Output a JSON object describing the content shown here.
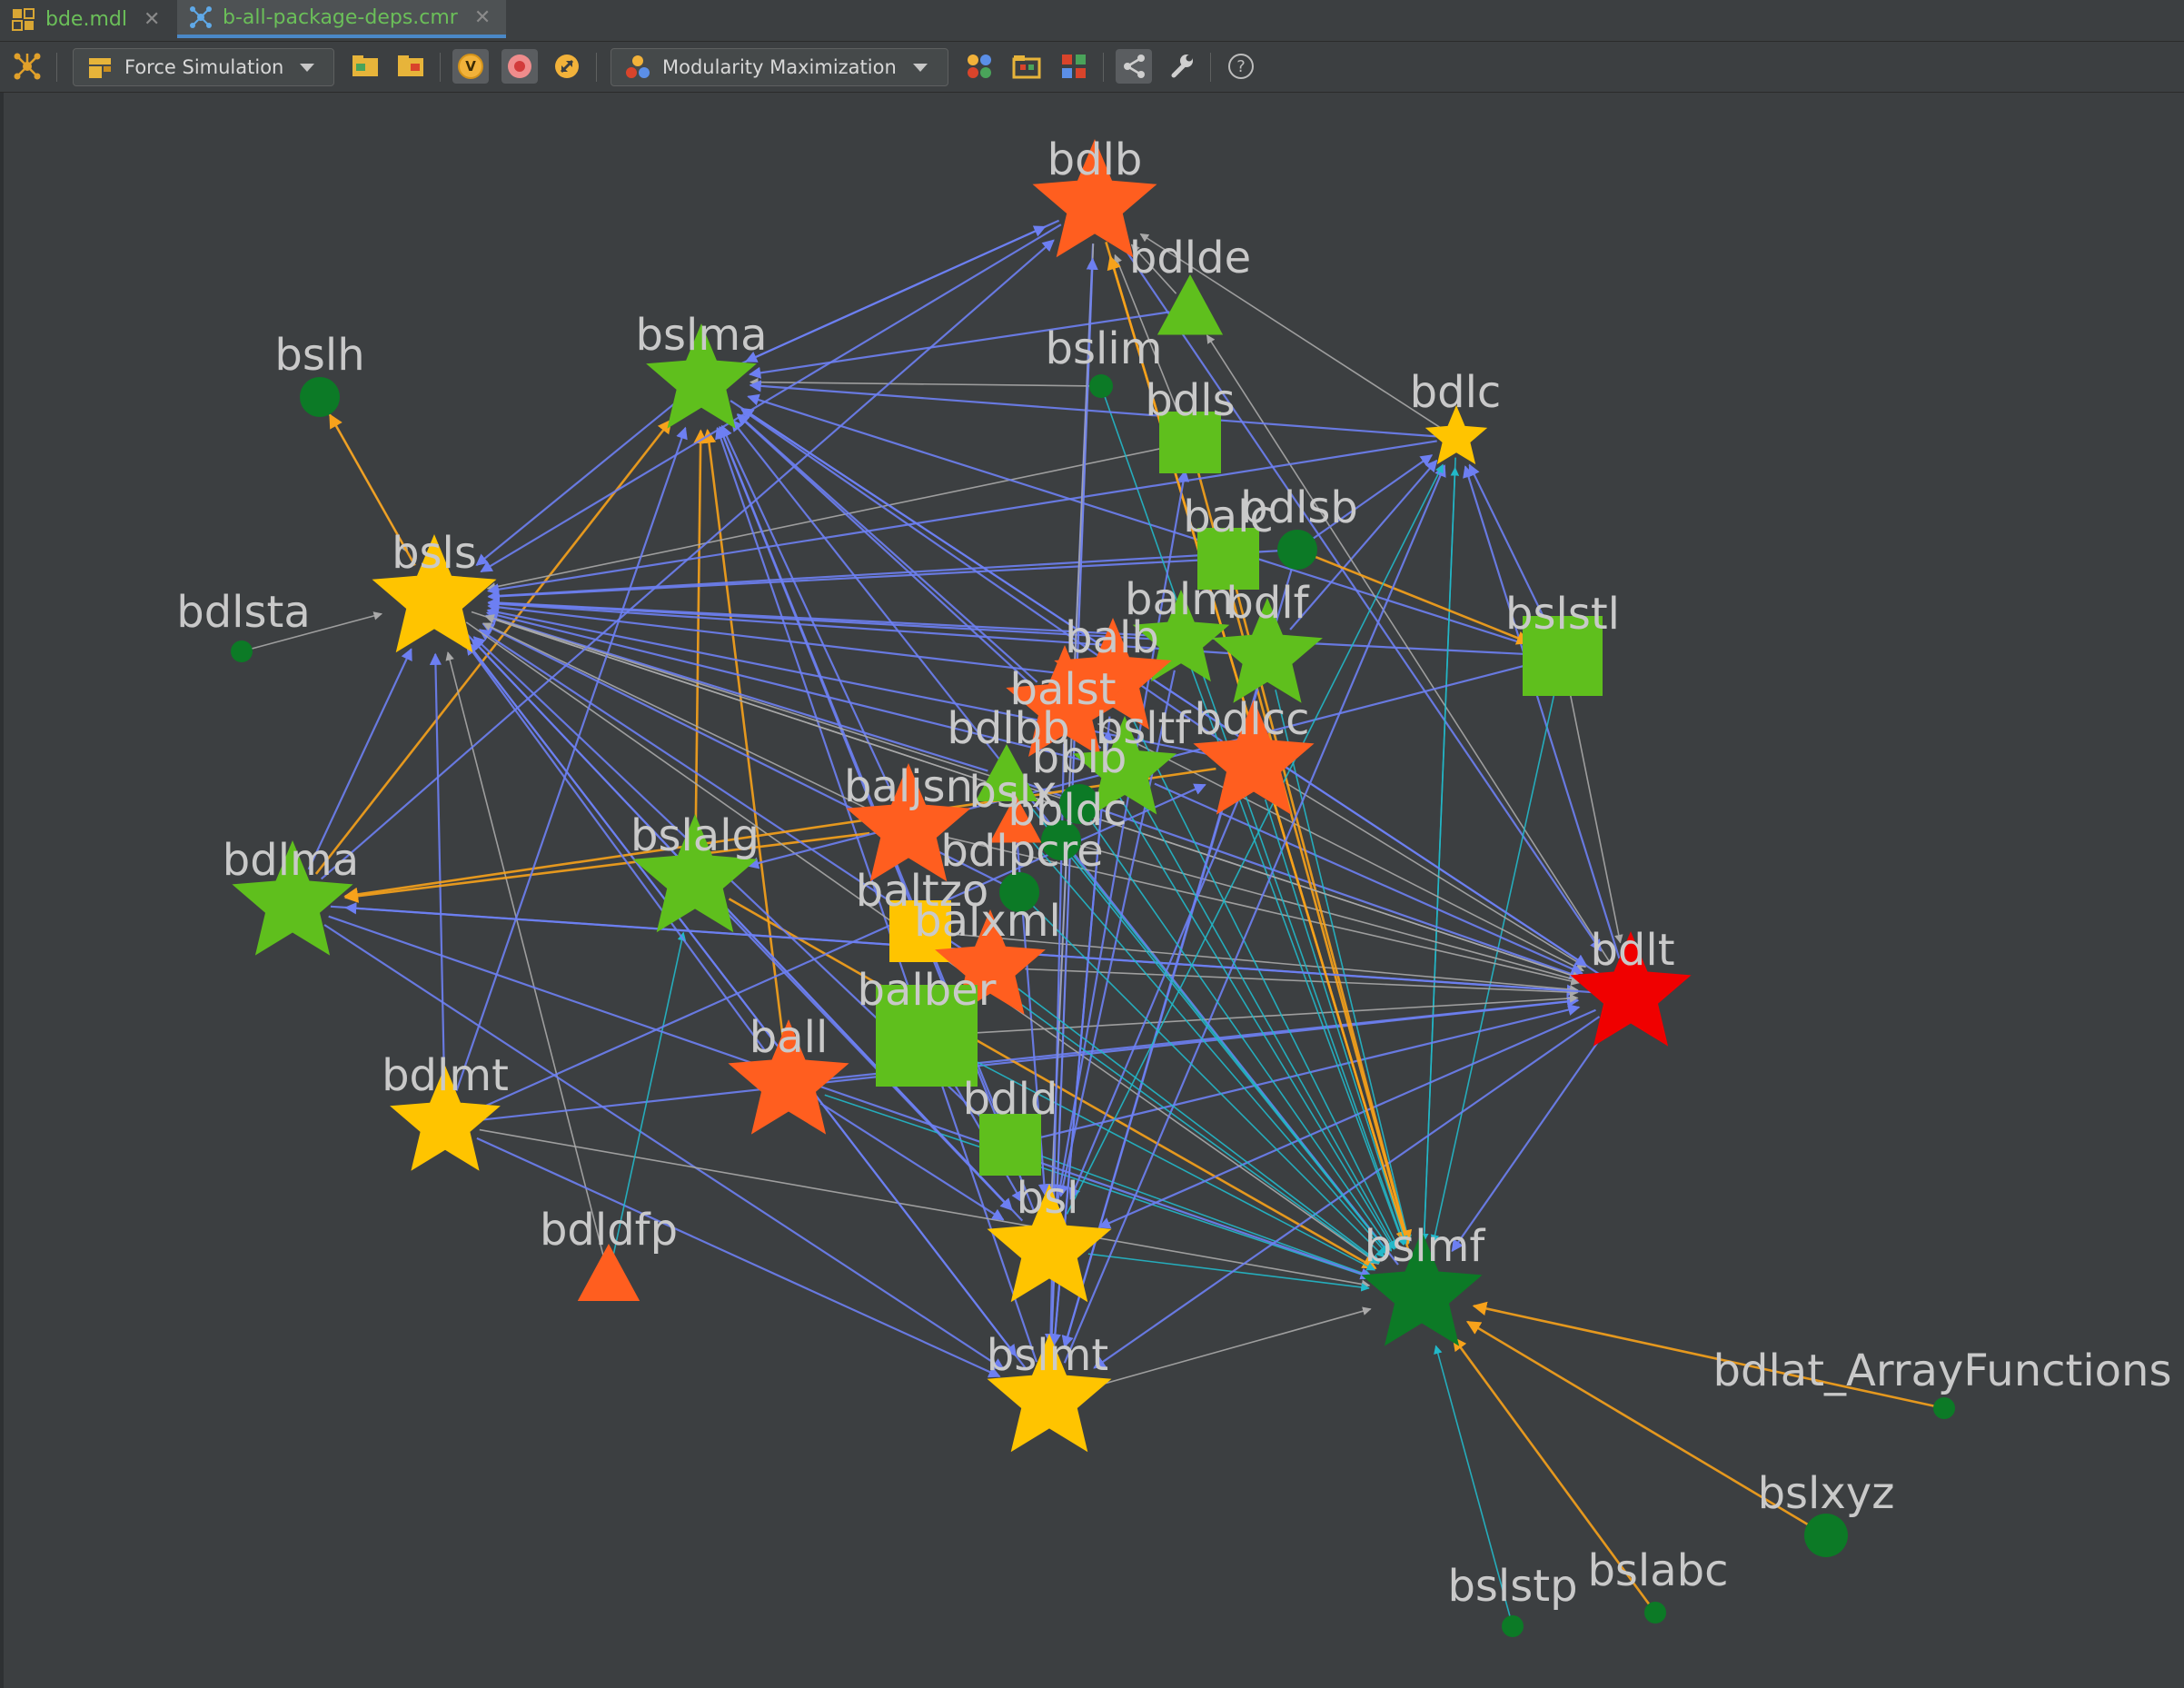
{
  "tabs": [
    {
      "label": "bde.mdl",
      "icon": "module-file-icon",
      "active": false
    },
    {
      "label": "b-all-package-deps.cmr",
      "icon": "graph-file-icon",
      "active": true
    }
  ],
  "toolbar": {
    "layout_dropdown": {
      "label": "Force Simulation",
      "icon": "layout-icon"
    },
    "clustering_dropdown": {
      "label": "Modularity Maximization",
      "icon": "clusters-icon"
    },
    "v_badge": "V",
    "help_glyph": "?"
  },
  "colors": {
    "orange": "#ff5e1f",
    "green": "#5fbf1d",
    "dark_green": "#0c7a26",
    "yellow": "#ffc400",
    "red": "#f00000",
    "edge_blue": "#6d7ff2",
    "edge_orange": "#f7a21b",
    "edge_cyan": "#22b8c9",
    "edge_gray": "#a9a9a9"
  },
  "graph": {
    "nodes": [
      {
        "id": "bdlb",
        "label": "bdlb",
        "shape": "star",
        "color": "orange"
      },
      {
        "id": "bdlde",
        "label": "bdlde",
        "shape": "triangle",
        "color": "green"
      },
      {
        "id": "bslma",
        "label": "bslma",
        "shape": "star",
        "color": "green"
      },
      {
        "id": "bslh",
        "label": "bslh",
        "shape": "circle",
        "color": "dark_green"
      },
      {
        "id": "bslim",
        "label": "bslim",
        "shape": "circle",
        "color": "dark_green"
      },
      {
        "id": "bdls",
        "label": "bdls",
        "shape": "square",
        "color": "green"
      },
      {
        "id": "bdlc",
        "label": "bdlc",
        "shape": "star",
        "color": "yellow"
      },
      {
        "id": "bsls",
        "label": "bsls",
        "shape": "star",
        "color": "yellow"
      },
      {
        "id": "bdlsta",
        "label": "bdlsta",
        "shape": "circle",
        "color": "dark_green"
      },
      {
        "id": "balc",
        "label": "balc",
        "shape": "square",
        "color": "green"
      },
      {
        "id": "bdlsb",
        "label": "bdlsb",
        "shape": "circle",
        "color": "dark_green"
      },
      {
        "id": "balm",
        "label": "balm",
        "shape": "star",
        "color": "green"
      },
      {
        "id": "bdlf",
        "label": "bdlf",
        "shape": "star",
        "color": "green"
      },
      {
        "id": "bslstl",
        "label": "bslstl",
        "shape": "square",
        "color": "green"
      },
      {
        "id": "balb",
        "label": "balb",
        "shape": "star",
        "color": "orange"
      },
      {
        "id": "balst",
        "label": "balst",
        "shape": "star",
        "color": "orange"
      },
      {
        "id": "bdlcc",
        "label": "bdlcc",
        "shape": "star",
        "color": "orange"
      },
      {
        "id": "bdlbb",
        "label": "bdlbb",
        "shape": "triangle",
        "color": "green"
      },
      {
        "id": "bsltf",
        "label": "bsltf",
        "shape": "star",
        "color": "green"
      },
      {
        "id": "bblb",
        "label": "bblb",
        "shape": "circle",
        "color": "dark_green"
      },
      {
        "id": "baljsn",
        "label": "baljsn",
        "shape": "star",
        "color": "orange"
      },
      {
        "id": "bslx",
        "label": "bslx",
        "shape": "triangle",
        "color": "orange"
      },
      {
        "id": "bbldc",
        "label": "bbldc",
        "shape": "circle",
        "color": "dark_green"
      },
      {
        "id": "bdlma",
        "label": "bdlma",
        "shape": "star",
        "color": "green"
      },
      {
        "id": "bslalg",
        "label": "bslalg",
        "shape": "star",
        "color": "green"
      },
      {
        "id": "bdlpcre",
        "label": "bdlpcre",
        "shape": "circle",
        "color": "dark_green"
      },
      {
        "id": "baltzo",
        "label": "baltzo",
        "shape": "square",
        "color": "yellow"
      },
      {
        "id": "balxml",
        "label": "balxml",
        "shape": "star",
        "color": "orange"
      },
      {
        "id": "bdlt",
        "label": "bdlt",
        "shape": "star",
        "color": "red"
      },
      {
        "id": "balber",
        "label": "balber",
        "shape": "square",
        "color": "green"
      },
      {
        "id": "ball",
        "label": "ball",
        "shape": "star",
        "color": "orange"
      },
      {
        "id": "bdlmt",
        "label": "bdlmt",
        "shape": "star",
        "color": "yellow"
      },
      {
        "id": "bdld",
        "label": "bdld",
        "shape": "square",
        "color": "green"
      },
      {
        "id": "bdldfp",
        "label": "bdldfp",
        "shape": "triangle",
        "color": "orange"
      },
      {
        "id": "bsl",
        "label": "bsl",
        "shape": "star",
        "color": "yellow"
      },
      {
        "id": "bslmf",
        "label": "bslmf",
        "shape": "star",
        "color": "dark_green"
      },
      {
        "id": "bslmt",
        "label": "bslmt",
        "shape": "star",
        "color": "yellow"
      },
      {
        "id": "bdlat_ArrayFunctions",
        "label": "bdlat_ArrayFunctions",
        "shape": "circle",
        "color": "dark_green"
      },
      {
        "id": "bslxyz",
        "label": "bslxyz",
        "shape": "circle",
        "color": "dark_green"
      },
      {
        "id": "bslstp",
        "label": "bslstp",
        "shape": "circle",
        "color": "dark_green"
      },
      {
        "id": "bslabc",
        "label": "bslabc",
        "shape": "circle",
        "color": "dark_green"
      }
    ],
    "edges": [
      [
        "bslh",
        "bsls",
        "edge_gray"
      ],
      [
        "bsls",
        "bslh",
        "edge_orange"
      ],
      [
        "bdlsta",
        "bsls",
        "edge_gray"
      ],
      [
        "bdlde",
        "bdlb",
        "edge_gray"
      ],
      [
        "bdlc",
        "bdlb",
        "edge_gray"
      ],
      [
        "bdls",
        "bdlb",
        "edge_gray"
      ],
      [
        "bslma",
        "bdlb",
        "edge_blue"
      ],
      [
        "bslma",
        "bsls",
        "edge_blue"
      ],
      [
        "bdlma",
        "bsls",
        "edge_blue"
      ],
      [
        "bdlma",
        "bslma",
        "edge_orange"
      ],
      [
        "bdlmt",
        "bsls",
        "edge_blue"
      ],
      [
        "bdldfp",
        "bsls",
        "edge_gray"
      ],
      [
        "bslalg",
        "bslma",
        "edge_orange"
      ],
      [
        "ball",
        "bslma",
        "edge_orange"
      ],
      [
        "bslmt",
        "bsls",
        "edge_blue"
      ],
      [
        "bsl",
        "bsls",
        "edge_blue"
      ],
      [
        "bdlt",
        "bsls",
        "edge_gray"
      ],
      [
        "bslstl",
        "bsls",
        "edge_blue"
      ],
      [
        "bdlcc",
        "bsls",
        "edge_blue"
      ],
      [
        "balb",
        "bsls",
        "edge_blue"
      ],
      [
        "balm",
        "bsls",
        "edge_blue"
      ],
      [
        "bdlf",
        "bsls",
        "edge_blue"
      ],
      [
        "balc",
        "bsls",
        "edge_blue"
      ],
      [
        "bdls",
        "bsls",
        "edge_gray"
      ],
      [
        "bslstl",
        "bslma",
        "edge_blue"
      ],
      [
        "bdlt",
        "bslma",
        "edge_blue"
      ],
      [
        "bdlcc",
        "bslma",
        "edge_blue"
      ],
      [
        "bslmf",
        "bslma",
        "edge_blue"
      ],
      [
        "bsl",
        "bslma",
        "edge_blue"
      ],
      [
        "bslmt",
        "bslma",
        "edge_blue"
      ],
      [
        "bslstl",
        "bdlc",
        "edge_blue"
      ],
      [
        "bdlt",
        "bdlc",
        "edge_blue"
      ],
      [
        "bdlf",
        "bdlc",
        "edge_blue"
      ],
      [
        "bslmf",
        "bdlc",
        "edge_cyan"
      ],
      [
        "bdlt",
        "bdlde",
        "edge_gray"
      ],
      [
        "bdlb",
        "bdlt",
        "edge_blue"
      ],
      [
        "bdlb",
        "bsl",
        "edge_blue"
      ],
      [
        "bdlb",
        "bslmt",
        "edge_gray"
      ],
      [
        "bdlb",
        "bslmf",
        "edge_orange"
      ],
      [
        "bdlc",
        "bslmf",
        "edge_cyan"
      ],
      [
        "bslstl",
        "bslmf",
        "edge_cyan"
      ],
      [
        "bslstl",
        "bdlt",
        "edge_gray"
      ],
      [
        "bdlma",
        "bdlt",
        "edge_blue"
      ],
      [
        "bdlma",
        "bslmt",
        "edge_blue"
      ],
      [
        "bdlmt",
        "bslmt",
        "edge_blue"
      ],
      [
        "bdlmt",
        "bslmf",
        "edge_gray"
      ],
      [
        "bdlmt",
        "bdlt",
        "edge_blue"
      ],
      [
        "bdldfp",
        "bslalg",
        "edge_cyan"
      ],
      [
        "bslalg",
        "bsl",
        "edge_blue"
      ],
      [
        "bslalg",
        "bslmf",
        "edge_orange"
      ],
      [
        "ball",
        "bslmf",
        "edge_cyan"
      ],
      [
        "ball",
        "bdlt",
        "edge_blue"
      ],
      [
        "ball",
        "bsl",
        "edge_blue"
      ],
      [
        "balber",
        "bdlt",
        "edge_gray"
      ],
      [
        "balber",
        "bslmf",
        "edge_cyan"
      ],
      [
        "balber",
        "bsl",
        "edge_blue"
      ],
      [
        "bdld",
        "bslmf",
        "edge_cyan"
      ],
      [
        "bdld",
        "bdlt",
        "edge_blue"
      ],
      [
        "bslmt",
        "bslmf",
        "edge_gray"
      ],
      [
        "bsl",
        "bslmf",
        "edge_cyan"
      ],
      [
        "baljsn",
        "bdlt",
        "edge_gray"
      ],
      [
        "baljsn",
        "bslma",
        "edge_blue"
      ],
      [
        "baljsn",
        "bdlma",
        "edge_orange"
      ],
      [
        "balxml",
        "bdlt",
        "edge_gray"
      ],
      [
        "balxml",
        "bsls",
        "edge_blue"
      ],
      [
        "baltzo",
        "bdlt",
        "edge_gray"
      ],
      [
        "balst",
        "bdlt",
        "edge_gray"
      ],
      [
        "bdlcc",
        "bdlt",
        "edge_gray"
      ],
      [
        "bsltf",
        "bdlt",
        "edge_blue"
      ],
      [
        "bdlbb",
        "bdlt",
        "edge_blue"
      ],
      [
        "bdlpcre",
        "bsls",
        "edge_blue"
      ],
      [
        "bbldc",
        "bdlt",
        "edge_gray"
      ],
      [
        "bdlsb",
        "bsls",
        "edge_blue"
      ],
      [
        "bdlsb",
        "bdlc",
        "edge_blue"
      ],
      [
        "bdlsb",
        "bslstl",
        "edge_orange"
      ],
      [
        "balb",
        "bslmf",
        "edge_cyan"
      ],
      [
        "balm",
        "bslmf",
        "edge_cyan"
      ],
      [
        "bdlf",
        "bslmf",
        "edge_cyan"
      ],
      [
        "bdlt",
        "bslmf",
        "edge_blue"
      ],
      [
        "bdlt",
        "bslmt",
        "edge_blue"
      ],
      [
        "bdlt",
        "bsl",
        "edge_blue"
      ],
      [
        "bslim",
        "bslma",
        "edge_gray"
      ],
      [
        "bslim",
        "bslmf",
        "edge_cyan"
      ],
      [
        "bdls",
        "bslmf",
        "edge_orange"
      ],
      [
        "balc",
        "bslmf",
        "edge_orange"
      ],
      [
        "bdlsb",
        "bslmt",
        "edge_blue"
      ],
      [
        "bslx",
        "bsl",
        "edge_blue"
      ],
      [
        "bdlat_ArrayFunctions",
        "bslmf",
        "edge_orange"
      ],
      [
        "bslxyz",
        "bslmf",
        "edge_orange"
      ],
      [
        "bslabc",
        "bslmf",
        "edge_orange"
      ],
      [
        "bslstp",
        "bslmf",
        "edge_cyan"
      ],
      [
        "bslma",
        "bdlt",
        "edge_blue"
      ],
      [
        "bsls",
        "bdlt",
        "edge_gray"
      ],
      [
        "bsls",
        "bslmt",
        "edge_blue"
      ],
      [
        "bsls",
        "bslmf",
        "edge_gray"
      ],
      [
        "bsls",
        "bsl",
        "edge_blue"
      ],
      [
        "bdlb",
        "bslma",
        "edge_blue"
      ],
      [
        "bdlb",
        "bsls",
        "edge_blue"
      ],
      [
        "bdlde",
        "bslma",
        "edge_blue"
      ],
      [
        "bdlc",
        "bsls",
        "edge_blue"
      ],
      [
        "bdlc",
        "bslma",
        "edge_blue"
      ],
      [
        "bslstl",
        "bslalg",
        "edge_blue"
      ],
      [
        "bdlt",
        "bdlma",
        "edge_blue"
      ],
      [
        "bdlcc",
        "bdlma",
        "edge_orange"
      ],
      [
        "bsltf",
        "bslma",
        "edge_blue"
      ],
      [
        "balst",
        "bslma",
        "edge_blue"
      ],
      [
        "bdlmt",
        "bslma",
        "edge_blue"
      ],
      [
        "ball",
        "bsls",
        "edge_blue"
      ],
      [
        "bdld",
        "bsls",
        "edge_blue"
      ],
      [
        "bdld",
        "bslma",
        "edge_blue"
      ],
      [
        "bsl",
        "bdlb",
        "edge_gray"
      ],
      [
        "bslmt",
        "bdlb",
        "edge_blue"
      ],
      [
        "bslmf",
        "bdlb",
        "edge_orange"
      ],
      [
        "bsl",
        "bdls",
        "edge_blue"
      ],
      [
        "bslmt",
        "bdlc",
        "edge_blue"
      ],
      [
        "bdlma",
        "bslmf",
        "edge_blue"
      ],
      [
        "bdlf",
        "bslmt",
        "edge_blue"
      ],
      [
        "balm",
        "bsl",
        "edge_blue"
      ],
      [
        "balb",
        "bslmt",
        "edge_blue"
      ],
      [
        "balst",
        "bslmt",
        "edge_blue"
      ],
      [
        "bdlcc",
        "bsl",
        "edge_blue"
      ],
      [
        "bsltf",
        "bslmf",
        "edge_cyan"
      ],
      [
        "bdlbb",
        "bslmf",
        "edge_cyan"
      ],
      [
        "bslx",
        "bslmf",
        "edge_cyan"
      ],
      [
        "bbldc",
        "bslmf",
        "edge_cyan"
      ],
      [
        "bdlpcre",
        "bslmf",
        "edge_cyan"
      ],
      [
        "baltzo",
        "bslmf",
        "edge_cyan"
      ],
      [
        "balxml",
        "bslmf",
        "edge_cyan"
      ],
      [
        "bblb",
        "bslmf",
        "edge_cyan"
      ],
      [
        "balst",
        "bslmf",
        "edge_cyan"
      ],
      [
        "bdlcc",
        "bslmf",
        "edge_cyan"
      ],
      [
        "bdlbb",
        "bsls",
        "edge_blue"
      ],
      [
        "bsltf",
        "bsls",
        "edge_blue"
      ],
      [
        "bblb",
        "bsls",
        "edge_gray"
      ],
      [
        "baljsn",
        "bsls",
        "edge_gray"
      ],
      [
        "bdlma",
        "bdlb",
        "edge_blue"
      ],
      [
        "bdlmt",
        "bdlcc",
        "edge_blue"
      ],
      [
        "bslmt",
        "balb",
        "edge_blue"
      ],
      [
        "bsl",
        "bdlc",
        "edge_cyan"
      ]
    ]
  }
}
